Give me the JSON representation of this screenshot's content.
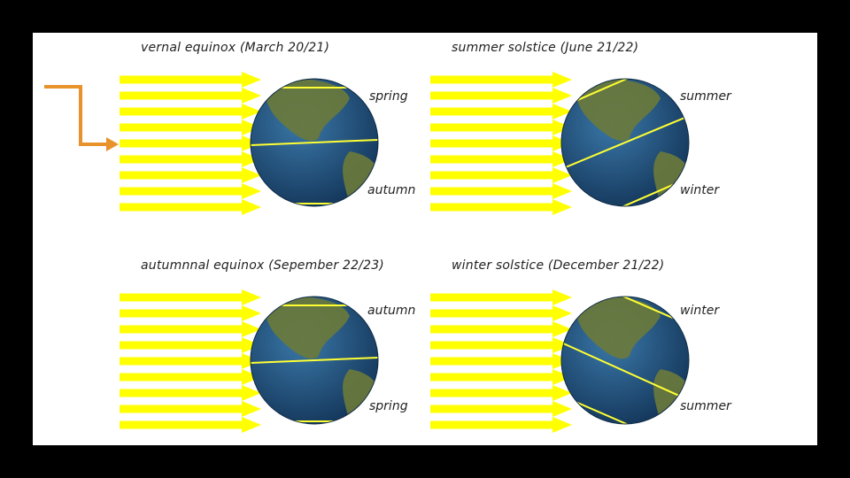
{
  "panels": [
    {
      "title": "vernal equinox (March 20/21)",
      "upper_label": "spring",
      "lower_label": "autumn",
      "tilt": "none"
    },
    {
      "title": "summer solstice (June 21/22)",
      "upper_label": "summer",
      "lower_label": "winter",
      "tilt": "north-toward-sun"
    },
    {
      "title": "autumnnal equinox (Sepember 22/23)",
      "upper_label": "autumn",
      "lower_label": "spring",
      "tilt": "none"
    },
    {
      "title": "winter solstice (December 21/22)",
      "upper_label": "winter",
      "lower_label": "summer",
      "tilt": "north-away-from-sun"
    }
  ],
  "colors": {
    "background": "#000000",
    "slide": "#ffffff",
    "sun_rays": "#ffff00",
    "pointer_arrow": "#e8922c",
    "ocean": "#1f4f7c",
    "land": "#6b7a3a",
    "lines": "#ffff33"
  },
  "icons": [
    "sun-ray-arrow-icon",
    "earth-globe-icon",
    "pointer-arrow-icon"
  ]
}
